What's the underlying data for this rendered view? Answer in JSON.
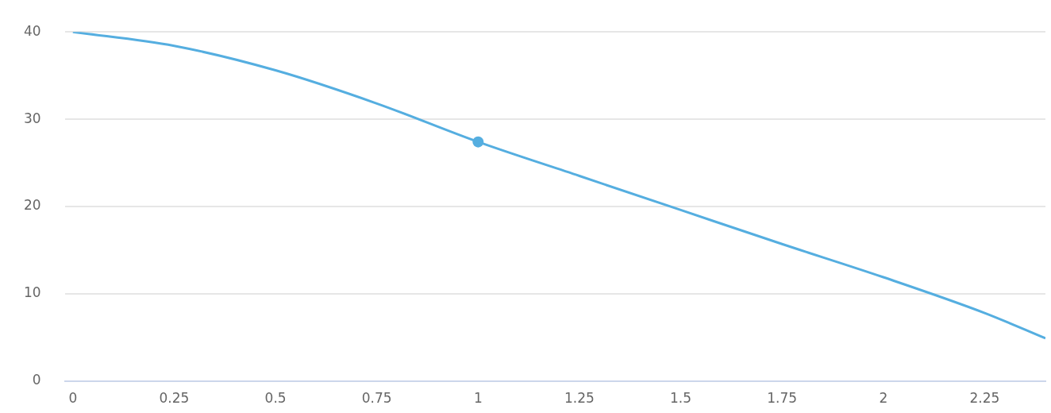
{
  "chart_data": {
    "type": "line",
    "x": [
      0,
      0.25,
      0.5,
      0.75,
      1,
      1.25,
      1.5,
      1.75,
      2,
      2.25,
      2.4
    ],
    "series": [
      {
        "color": "#55aee0",
        "values": [
          40,
          38.4,
          35.6,
          31.8,
          27.4,
          23.5,
          19.6,
          15.7,
          11.9,
          7.8,
          4.9
        ],
        "marker": "none"
      },
      {
        "type": "scatter",
        "color": "#55aee0",
        "x": [
          1
        ],
        "values": [
          27.4
        ],
        "marker": "circle"
      }
    ],
    "xlim": [
      -0.02,
      2.4
    ],
    "xticks": [
      0,
      0.25,
      0.5,
      0.75,
      1,
      1.25,
      1.5,
      1.75,
      2,
      2.25
    ],
    "ylim": [
      0,
      40
    ],
    "yticks": [
      0,
      10,
      20,
      30,
      40
    ],
    "grid": "y"
  }
}
